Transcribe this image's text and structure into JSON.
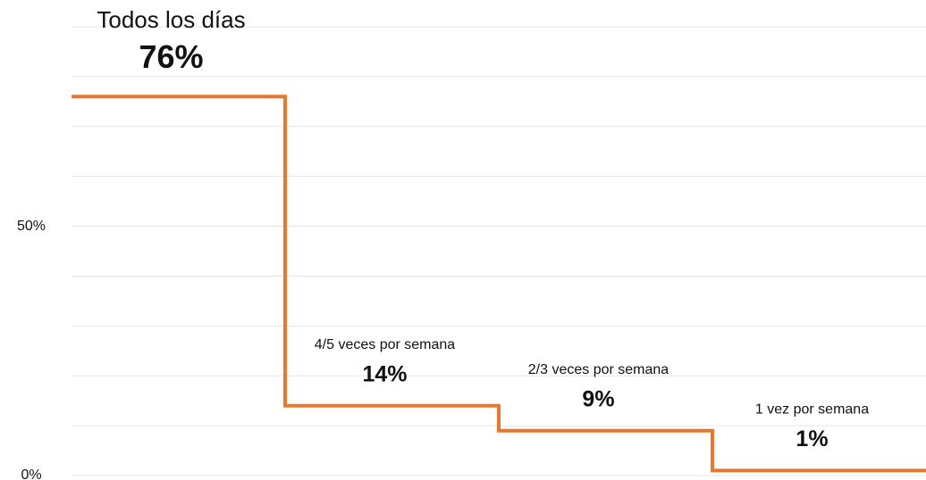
{
  "chart_data": {
    "type": "step",
    "categories": [
      "Todos los días",
      "4/5 veces por semana",
      "2/3 veces por semana",
      "1 vez por semana"
    ],
    "values": [
      76,
      14,
      9,
      1
    ],
    "value_labels": [
      "76%",
      "14%",
      "9%",
      "1%"
    ],
    "color": "#e8782f",
    "ylim": [
      0,
      90
    ],
    "yticks": [
      {
        "value": 0,
        "label": "0%"
      },
      {
        "value": 50,
        "label": "50%"
      }
    ],
    "minor_yticks": [
      10,
      20,
      30,
      40,
      60,
      70,
      80,
      90
    ],
    "grid": true
  }
}
